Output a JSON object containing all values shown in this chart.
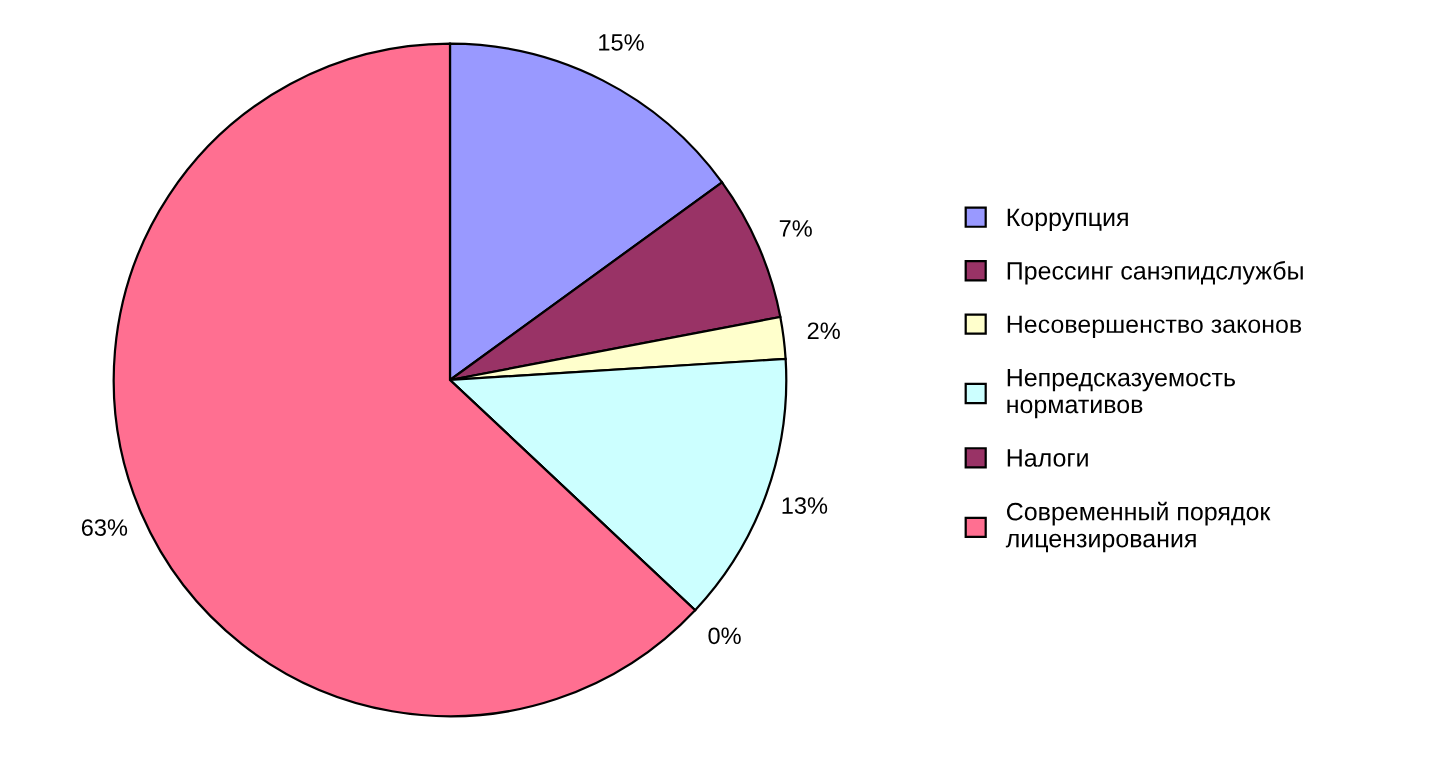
{
  "chart_data": {
    "type": "pie",
    "categories": [
      "Коррупция",
      "Прессинг санэпидслужбы",
      "Несовершенство законов",
      "Непредсказуемость\nнормативов",
      "Налоги",
      "Современный порядок\nлицензирования"
    ],
    "values": [
      15,
      7,
      2,
      13,
      0,
      63
    ],
    "value_labels": [
      "15%",
      "7%",
      "2%",
      "13%",
      "0%",
      "63%"
    ],
    "colors": [
      "#9999ff",
      "#993366",
      "#ffffcc",
      "#ccffff",
      "#993366",
      "#ff6f91"
    ],
    "legend": "right"
  }
}
